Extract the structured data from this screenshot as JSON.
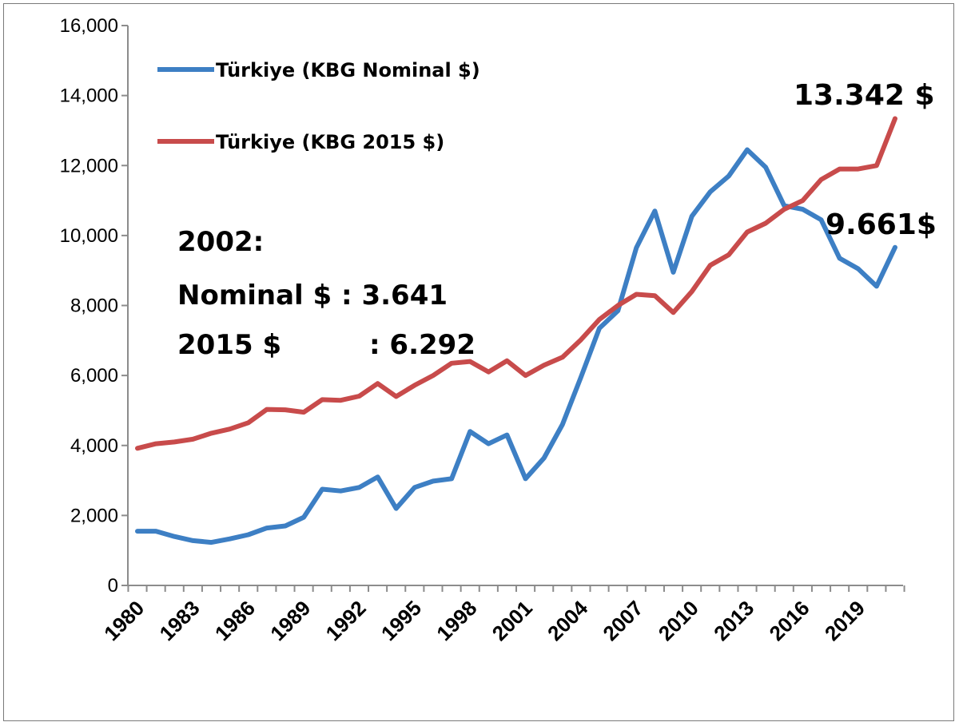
{
  "chart_data": {
    "type": "line",
    "title": "",
    "xlabel": "",
    "ylabel": "",
    "ylim": [
      0,
      16000
    ],
    "yticks": [
      "0",
      "2,000",
      "4,000",
      "6,000",
      "8,000",
      "10,000",
      "12,000",
      "14,000",
      "16,000"
    ],
    "ytick_values": [
      0,
      2000,
      4000,
      6000,
      8000,
      10000,
      12000,
      14000,
      16000
    ],
    "xtick_labels": [
      "1980",
      "1983",
      "1986",
      "1989",
      "1992",
      "1995",
      "1998",
      "2001",
      "2004",
      "2007",
      "2010",
      "2013",
      "2016",
      "2019"
    ],
    "xtick_values": [
      1980,
      1983,
      1986,
      1989,
      1992,
      1995,
      1998,
      2001,
      2004,
      2007,
      2010,
      2013,
      2016,
      2019
    ],
    "x": [
      1980,
      1981,
      1982,
      1983,
      1984,
      1985,
      1986,
      1987,
      1988,
      1989,
      1990,
      1991,
      1992,
      1993,
      1994,
      1995,
      1996,
      1997,
      1998,
      1999,
      2000,
      2001,
      2002,
      2003,
      2004,
      2005,
      2006,
      2007,
      2008,
      2009,
      2010,
      2011,
      2012,
      2013,
      2014,
      2015,
      2016,
      2017,
      2018,
      2019,
      2020,
      2021
    ],
    "legend_position": "top-left",
    "series": [
      {
        "name": "Türkiye (KBG Nominal $)",
        "color": "#3d7fc4",
        "values": [
          1550,
          1550,
          1400,
          1280,
          1230,
          1330,
          1450,
          1640,
          1700,
          1950,
          2750,
          2700,
          2800,
          3100,
          2200,
          2800,
          2980,
          3050,
          4400,
          4050,
          4300,
          3050,
          3641,
          4600,
          5950,
          7350,
          7850,
          9650,
          10700,
          8950,
          10550,
          11250,
          11700,
          12450,
          11950,
          10850,
          10750,
          10450,
          9350,
          9050,
          8550,
          9661
        ]
      },
      {
        "name": "Türkiye (KBG 2015  $)",
        "color": "#c84b4b",
        "values": [
          3920,
          4050,
          4100,
          4180,
          4350,
          4470,
          4650,
          5030,
          5020,
          4950,
          5310,
          5290,
          5410,
          5770,
          5400,
          5720,
          6000,
          6350,
          6400,
          6100,
          6420,
          6000,
          6292,
          6520,
          7020,
          7600,
          8000,
          8320,
          8280,
          7800,
          8400,
          9150,
          9450,
          10100,
          10350,
          10750,
          11000,
          11600,
          11900,
          11900,
          12000,
          13342
        ]
      }
    ],
    "annotations": {
      "line1": "2002:",
      "line2": "Nominal $ : 3.641",
      "line3_left": "2015 $",
      "line3_right": ": 6.292",
      "end_label_real": "13.342 $",
      "end_label_nominal": "9.661$"
    }
  }
}
